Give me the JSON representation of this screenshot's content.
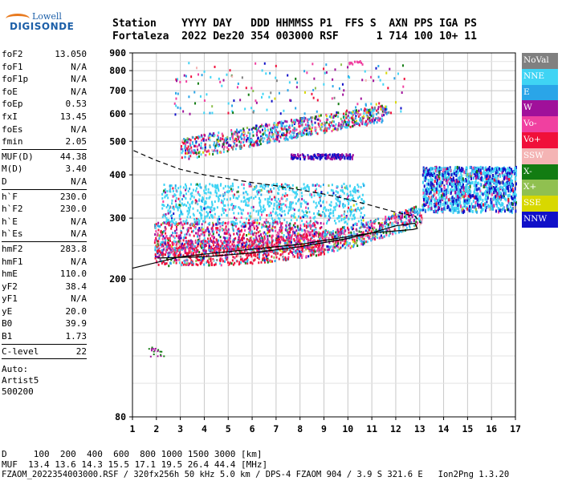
{
  "logo": {
    "line1": "Lowell",
    "line2": "DIGISONDE"
  },
  "header": {
    "row1": "Station    YYYY DAY   DDD HHMMSS P1  FFS S  AXN PPS IGA PS",
    "row2": "Fortaleza  2022 Dez20 354 003000 RSF      1 714 100 10+ 11"
  },
  "params": {
    "group1": [
      {
        "k": "foF2",
        "v": "13.050"
      },
      {
        "k": "foF1",
        "v": "N/A"
      },
      {
        "k": "foF1p",
        "v": "N/A"
      },
      {
        "k": "foE",
        "v": "N/A"
      },
      {
        "k": "foEp",
        "v": "0.53"
      },
      {
        "k": "fxI",
        "v": "13.45"
      },
      {
        "k": "foEs",
        "v": "N/A"
      },
      {
        "k": "fmin",
        "v": "2.05"
      }
    ],
    "group2": [
      {
        "k": "MUF(D)",
        "v": "44.38"
      },
      {
        "k": "M(D)",
        "v": "3.40"
      },
      {
        "k": "D",
        "v": "N/A"
      }
    ],
    "group3": [
      {
        "k": "h`F",
        "v": "230.0"
      },
      {
        "k": "h`F2",
        "v": "230.0"
      },
      {
        "k": "h`E",
        "v": "N/A"
      },
      {
        "k": "h`Es",
        "v": "N/A"
      }
    ],
    "group4": [
      {
        "k": "hmF2",
        "v": "283.8"
      },
      {
        "k": "hmF1",
        "v": "N/A"
      },
      {
        "k": "hmE",
        "v": "110.0"
      },
      {
        "k": "yF2",
        "v": "38.4"
      },
      {
        "k": "yF1",
        "v": "N/A"
      },
      {
        "k": "yE",
        "v": "20.0"
      },
      {
        "k": "B0",
        "v": "39.9"
      },
      {
        "k": "B1",
        "v": "1.73"
      }
    ],
    "group5": [
      {
        "k": "C-level",
        "v": "22"
      }
    ],
    "auto": [
      "Auto:",
      "Artist5",
      "500200"
    ]
  },
  "legend": [
    {
      "label": "NoVal",
      "color": "#808080"
    },
    {
      "label": "NNE",
      "color": "#3fd4f4"
    },
    {
      "label": "E",
      "color": "#2aa5e8"
    },
    {
      "label": "W",
      "color": "#a0109a"
    },
    {
      "label": "Vo-",
      "color": "#f040a0"
    },
    {
      "label": "Vo+",
      "color": "#f0103a"
    },
    {
      "label": "SSW",
      "color": "#f4b4b4"
    },
    {
      "label": "X-",
      "color": "#127c12"
    },
    {
      "label": "X+",
      "color": "#90c050"
    },
    {
      "label": "SSE",
      "color": "#d8d800"
    },
    {
      "label": "NNW",
      "color": "#1010c8"
    }
  ],
  "bottom": {
    "row1": "D     100  200  400  600  800 1000 1500 3000 [km]",
    "row2": "MUF  13.4 13.6 14.3 15.5 17.1 19.5 26.4 44.4 [MHz]",
    "row3": "FZAOM_2022354003000.RSF / 320fx256h 50 kHz 5.0 km / DPS-4 FZAOM 904 / 3.9 S 321.6 E   Ion2Png 1.3.20"
  },
  "chart_data": {
    "type": "scatter",
    "xlabel": "",
    "ylabel": "",
    "xlim": [
      1,
      17
    ],
    "ylim": [
      80,
      900
    ],
    "y_scale": "log",
    "x_ticks": [
      1,
      2,
      3,
      4,
      5,
      6,
      7,
      8,
      9,
      10,
      11,
      12,
      13,
      14,
      15,
      16,
      17
    ],
    "y_ticks": [
      80,
      200,
      300,
      400,
      500,
      600,
      700,
      800,
      900
    ],
    "grid": true,
    "series": [
      {
        "name": "traced-profile",
        "values": [
          [
            2.05,
            230
          ],
          [
            4,
            232
          ],
          [
            6,
            238
          ],
          [
            8,
            248
          ],
          [
            10,
            262
          ],
          [
            11,
            272
          ],
          [
            12,
            285
          ],
          [
            12.8,
            290
          ],
          [
            12.9,
            280
          ],
          [
            12.7,
            278
          ],
          [
            11,
            272
          ],
          [
            8,
            252
          ],
          [
            6,
            244
          ],
          [
            4,
            236
          ],
          [
            3,
            232
          ],
          [
            1,
            215
          ]
        ]
      },
      {
        "name": "extended-profile-dashed",
        "values": [
          [
            1.05,
            470
          ],
          [
            2,
            440
          ],
          [
            3,
            415
          ],
          [
            4,
            400
          ],
          [
            5,
            390
          ],
          [
            6,
            380
          ],
          [
            7,
            372
          ],
          [
            8,
            362
          ],
          [
            9,
            352
          ],
          [
            10,
            340
          ],
          [
            11,
            326
          ],
          [
            12,
            312
          ],
          [
            12.8,
            304
          ],
          [
            13.05,
            290
          ]
        ]
      }
    ]
  }
}
